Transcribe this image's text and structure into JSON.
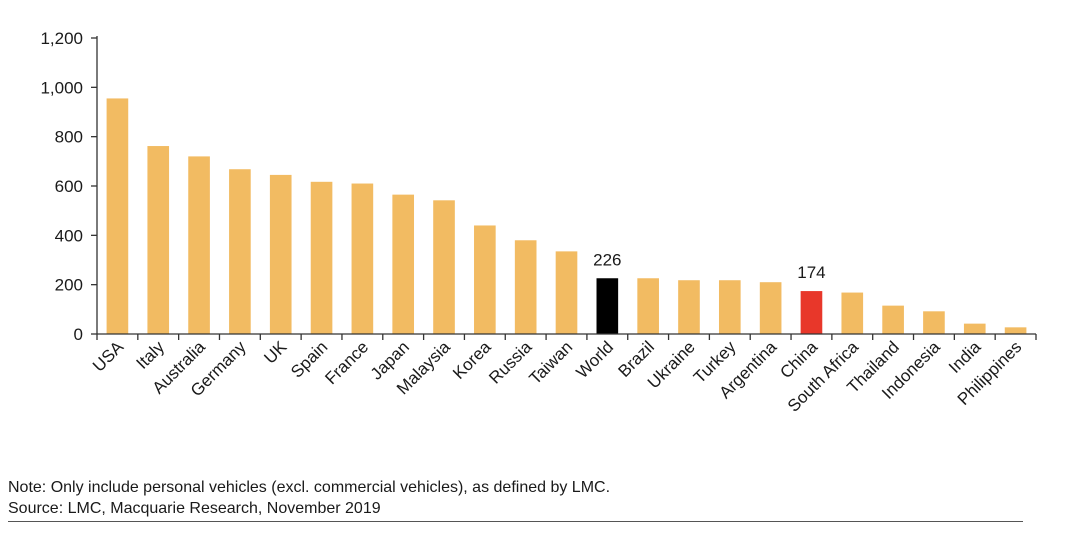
{
  "chart_data": {
    "type": "bar",
    "title": "",
    "xlabel": "",
    "ylabel": "",
    "ylim": [
      0,
      1200
    ],
    "yticks": [
      0,
      200,
      400,
      600,
      800,
      1000,
      1200
    ],
    "ytick_labels": [
      "0",
      "200",
      "400",
      "600",
      "800",
      "1,000",
      "1,200"
    ],
    "grid": false,
    "categories": [
      "USA",
      "Italy",
      "Australia",
      "Germany",
      "UK",
      "Spain",
      "France",
      "Japan",
      "Malaysia",
      "Korea",
      "Russia",
      "Taiwan",
      "World",
      "Brazil",
      "Ukraine",
      "Turkey",
      "Argentina",
      "China",
      "South Africa",
      "Thailand",
      "Indonesia",
      "India",
      "Philippines"
    ],
    "values": [
      955,
      762,
      720,
      668,
      645,
      617,
      610,
      565,
      542,
      440,
      380,
      335,
      226,
      226,
      218,
      218,
      210,
      174,
      168,
      115,
      92,
      42,
      27
    ],
    "bar_colors": [
      "#f2bb62",
      "#f2bb62",
      "#f2bb62",
      "#f2bb62",
      "#f2bb62",
      "#f2bb62",
      "#f2bb62",
      "#f2bb62",
      "#f2bb62",
      "#f2bb62",
      "#f2bb62",
      "#f2bb62",
      "#000000",
      "#f2bb62",
      "#f2bb62",
      "#f2bb62",
      "#f2bb62",
      "#e8372a",
      "#f2bb62",
      "#f2bb62",
      "#f2bb62",
      "#f2bb62",
      "#f2bb62"
    ],
    "data_labels": [
      {
        "category": "World",
        "text": "226"
      },
      {
        "category": "China",
        "text": "174"
      }
    ]
  },
  "colors": {
    "default_bar": "#f2bb62",
    "world_bar": "#000000",
    "china_bar": "#e8372a",
    "axis": "#333333"
  },
  "notes": {
    "note": "Note: Only include personal vehicles (excl. commercial vehicles), as defined by LMC.",
    "source": "Source: LMC, Macquarie Research, November 2019"
  }
}
